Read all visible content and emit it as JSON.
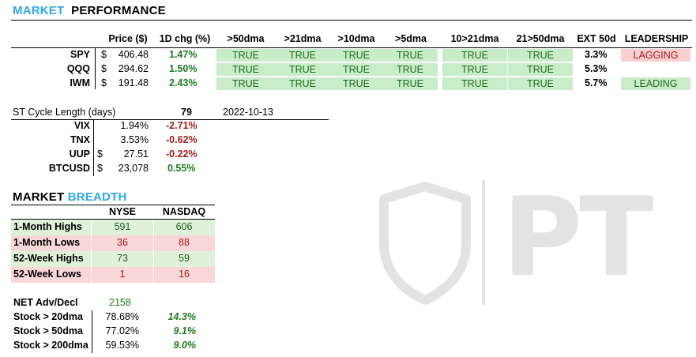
{
  "performance": {
    "title_a": "MARKET",
    "title_b": "PERFORMANCE",
    "headers": [
      "Price ($)",
      "1D chg (%)",
      ">50dma",
      ">21dma",
      ">10dma",
      ">5dma",
      "10>21dma",
      "21>50dma",
      "EXT 50d",
      "LEADERSHIP"
    ],
    "rows": [
      {
        "ticker": "SPY",
        "cur": "$",
        "price": "406.48",
        "chg": "1.47%",
        "flags": [
          "TRUE",
          "TRUE",
          "TRUE",
          "TRUE",
          "TRUE",
          "TRUE"
        ],
        "ext": "3.3%",
        "leadership": "LAGGING"
      },
      {
        "ticker": "QQQ",
        "cur": "$",
        "price": "294.62",
        "chg": "1.50%",
        "flags": [
          "TRUE",
          "TRUE",
          "TRUE",
          "TRUE",
          "TRUE",
          "TRUE"
        ],
        "ext": "5.3%",
        "leadership": ""
      },
      {
        "ticker": "IWM",
        "cur": "$",
        "price": "191.48",
        "chg": "2.43%",
        "flags": [
          "TRUE",
          "TRUE",
          "TRUE",
          "TRUE",
          "TRUE",
          "TRUE"
        ],
        "ext": "5.7%",
        "leadership": "LEADING"
      }
    ]
  },
  "cycle": {
    "label": "ST Cycle Length (days)",
    "value": "79",
    "date": "2022-10-13",
    "rows": [
      {
        "ticker": "VIX",
        "cur": "",
        "price": "1.94%",
        "chg": "-2.71%"
      },
      {
        "ticker": "TNX",
        "cur": "",
        "price": "3.53%",
        "chg": "-0.62%"
      },
      {
        "ticker": "UUP",
        "cur": "$",
        "price": "27.51",
        "chg": "-0.22%"
      },
      {
        "ticker": "BTCUSD",
        "cur": "$",
        "price": "23,078",
        "chg": "0.55%"
      }
    ]
  },
  "breadth": {
    "title_a": "MARKET",
    "title_b": "BREADTH",
    "headers": [
      "NYSE",
      "NASDAQ"
    ],
    "rows": [
      {
        "label": "1-Month Highs",
        "nyse": "591",
        "nasdaq": "606",
        "tone": "green"
      },
      {
        "label": "1-Month Lows",
        "nyse": "36",
        "nasdaq": "88",
        "tone": "red"
      },
      {
        "label": "52-Week Highs",
        "nyse": "73",
        "nasdaq": "59",
        "tone": "green"
      },
      {
        "label": "52-Week Lows",
        "nyse": "1",
        "nasdaq": "16",
        "tone": "red"
      }
    ],
    "net_label": "NET Adv/Decl",
    "net_value": "2158",
    "stock_rows": [
      {
        "label": "Stock > 20dma",
        "value": "78.68%",
        "chg": "14.3%"
      },
      {
        "label": "Stock > 50dma",
        "value": "77.02%",
        "chg": "9.1%"
      },
      {
        "label": "Stock > 200dma",
        "value": "59.53%",
        "chg": "9.0%"
      }
    ]
  },
  "watermark": {
    "text": "PT",
    "colors": {
      "mark": "#e3e3e3"
    }
  },
  "colors": {
    "accent": "#2fa8e0",
    "green_bg": "#c9ecc9",
    "red_bg": "#f9cfd2"
  }
}
